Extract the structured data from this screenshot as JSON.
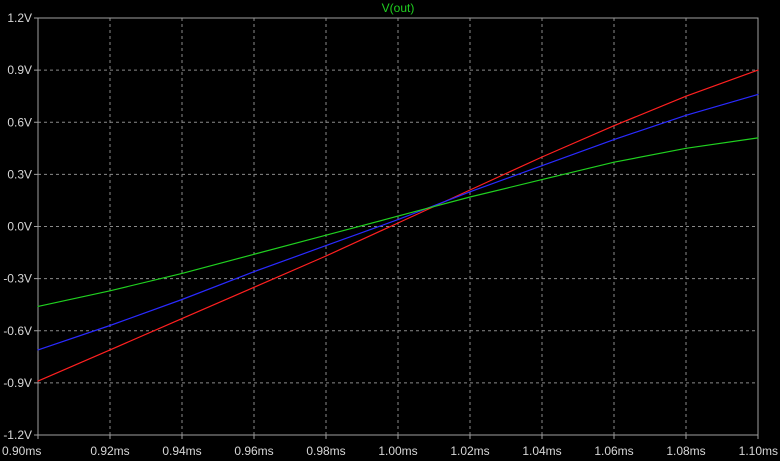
{
  "chart_data": {
    "type": "line",
    "title": "V(out)",
    "xlabel": "",
    "ylabel": "",
    "xlim": [
      0.9,
      1.1
    ],
    "ylim": [
      -1.2,
      1.2
    ],
    "x_ticks": [
      0.9,
      0.92,
      0.94,
      0.96,
      0.98,
      1.0,
      1.02,
      1.04,
      1.06,
      1.08,
      1.1
    ],
    "x_tick_labels": [
      "0.90ms",
      "0.92ms",
      "0.94ms",
      "0.96ms",
      "0.98ms",
      "1.00ms",
      "1.02ms",
      "1.04ms",
      "1.06ms",
      "1.08ms",
      "1.10ms"
    ],
    "y_ticks": [
      1.2,
      0.9,
      0.6,
      0.3,
      0.0,
      -0.3,
      -0.6,
      -0.9,
      -1.2
    ],
    "y_tick_labels": [
      "1.2V",
      "0.9V",
      "0.6V",
      "0.3V",
      "0.0V",
      "-0.3V",
      "-0.6V",
      "-0.9V",
      "-1.2V"
    ],
    "grid": true,
    "series": [
      {
        "name": "V(out) red",
        "color": "#ff2020",
        "x": [
          0.9,
          0.92,
          0.94,
          0.96,
          0.98,
          1.0,
          1.02,
          1.04,
          1.06,
          1.08,
          1.1
        ],
        "y": [
          -0.89,
          -0.71,
          -0.53,
          -0.35,
          -0.17,
          0.02,
          0.21,
          0.4,
          0.58,
          0.75,
          0.9
        ]
      },
      {
        "name": "V(out) blue",
        "color": "#2a2aff",
        "x": [
          0.9,
          0.92,
          0.94,
          0.96,
          0.98,
          1.0,
          1.02,
          1.04,
          1.06,
          1.08,
          1.1
        ],
        "y": [
          -0.71,
          -0.57,
          -0.42,
          -0.26,
          -0.11,
          0.04,
          0.2,
          0.35,
          0.5,
          0.64,
          0.76
        ]
      },
      {
        "name": "V(out) green",
        "color": "#20d020",
        "x": [
          0.9,
          0.92,
          0.94,
          0.96,
          0.98,
          1.0,
          1.02,
          1.04,
          1.06,
          1.08,
          1.1
        ],
        "y": [
          -0.46,
          -0.37,
          -0.27,
          -0.16,
          -0.05,
          0.06,
          0.17,
          0.27,
          0.37,
          0.45,
          0.51
        ]
      }
    ],
    "title_color": "#20d020"
  }
}
